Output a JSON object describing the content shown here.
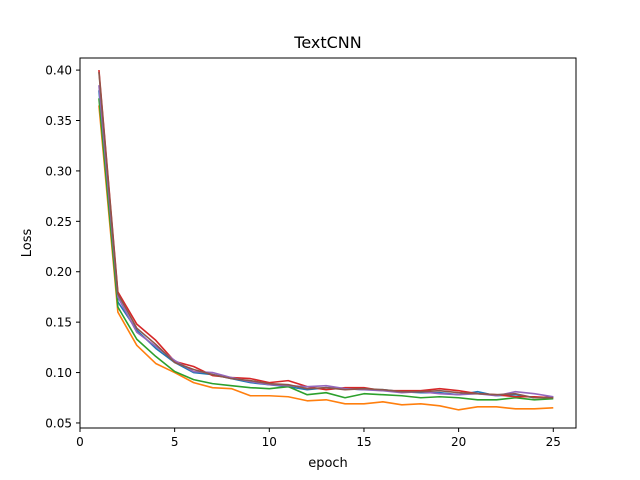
{
  "chart_data": {
    "type": "line",
    "title": "TextCNN",
    "xlabel": "epoch",
    "ylabel": "Loss",
    "xlim": [
      0,
      26.2
    ],
    "ylim": [
      0.045,
      0.412
    ],
    "xticks": [
      0,
      5,
      10,
      15,
      20,
      25
    ],
    "yticks": [
      0.05,
      0.1,
      0.15,
      0.2,
      0.25,
      0.3,
      0.35,
      0.4
    ],
    "ytick_labels": [
      "0.05",
      "0.10",
      "0.15",
      "0.20",
      "0.25",
      "0.30",
      "0.35",
      "0.40"
    ],
    "grid": false,
    "legend": "none",
    "x": [
      1,
      2,
      3,
      4,
      5,
      6,
      7,
      8,
      9,
      10,
      11,
      12,
      13,
      14,
      15,
      16,
      17,
      18,
      19,
      20,
      21,
      22,
      23,
      24,
      25
    ],
    "series": [
      {
        "color": "#1f77b4",
        "values": [
          0.38,
          0.17,
          0.142,
          0.124,
          0.11,
          0.1,
          0.098,
          0.094,
          0.09,
          0.088,
          0.086,
          0.083,
          0.085,
          0.084,
          0.083,
          0.083,
          0.081,
          0.08,
          0.08,
          0.078,
          0.081,
          0.077,
          0.078,
          0.075,
          0.076
        ]
      },
      {
        "color": "#ff7f0e",
        "values": [
          0.365,
          0.16,
          0.127,
          0.109,
          0.1,
          0.09,
          0.085,
          0.084,
          0.077,
          0.077,
          0.076,
          0.072,
          0.073,
          0.069,
          0.069,
          0.071,
          0.068,
          0.069,
          0.067,
          0.063,
          0.066,
          0.066,
          0.064,
          0.064,
          0.065
        ]
      },
      {
        "color": "#2ca02c",
        "values": [
          0.372,
          0.165,
          0.133,
          0.116,
          0.101,
          0.093,
          0.089,
          0.087,
          0.085,
          0.084,
          0.086,
          0.078,
          0.08,
          0.075,
          0.079,
          0.078,
          0.077,
          0.075,
          0.076,
          0.075,
          0.073,
          0.073,
          0.075,
          0.073,
          0.074
        ]
      },
      {
        "color": "#d62728",
        "values": [
          0.4,
          0.18,
          0.148,
          0.132,
          0.111,
          0.106,
          0.097,
          0.095,
          0.094,
          0.09,
          0.092,
          0.086,
          0.083,
          0.085,
          0.085,
          0.082,
          0.082,
          0.082,
          0.084,
          0.082,
          0.079,
          0.078,
          0.076,
          0.076,
          0.075
        ]
      },
      {
        "color": "#9467bd",
        "values": [
          0.385,
          0.175,
          0.14,
          0.126,
          0.112,
          0.101,
          0.1,
          0.095,
          0.091,
          0.088,
          0.087,
          0.086,
          0.087,
          0.084,
          0.083,
          0.082,
          0.08,
          0.081,
          0.079,
          0.078,
          0.079,
          0.077,
          0.081,
          0.079,
          0.076
        ]
      },
      {
        "color": "#8c564b",
        "values": [
          0.398,
          0.178,
          0.144,
          0.128,
          0.11,
          0.103,
          0.098,
          0.094,
          0.092,
          0.089,
          0.088,
          0.084,
          0.085,
          0.083,
          0.084,
          0.083,
          0.081,
          0.081,
          0.082,
          0.08,
          0.079,
          0.078,
          0.079,
          0.075,
          0.075
        ]
      }
    ]
  }
}
